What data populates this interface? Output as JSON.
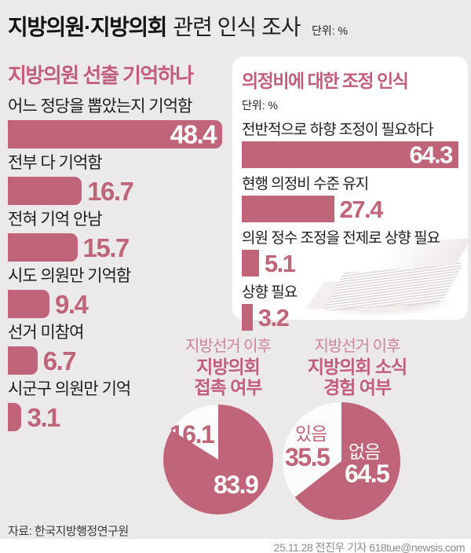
{
  "header": {
    "title_bold": "지방의원·지방의회",
    "title_rest": "관련 인식 조사",
    "unit": "단위: %"
  },
  "chart_data": [
    {
      "type": "bar",
      "orientation": "horizontal",
      "title": "지방의원 선출 기억하나",
      "unit": "%",
      "categories": [
        "어느 정당을 뽑았는지 기억함",
        "전부 다 기억함",
        "전혀 기억 안남",
        "시도 의원만 기억함",
        "선거 미참여",
        "시군구 의원만 기억"
      ],
      "values": [
        48.4,
        16.7,
        15.7,
        9.4,
        6.7,
        3.1
      ],
      "xlim": [
        0,
        50
      ],
      "grid": false
    },
    {
      "type": "bar",
      "orientation": "horizontal",
      "title": "의정비에 대한 조정 인식",
      "unit": "단위: %",
      "categories": [
        "전반적으로 하향 조정이 필요하다",
        "현행 의정비 수준 유지",
        "의원 정수 조정을 전제로 상향 필요",
        "상향 필요"
      ],
      "values": [
        64.3,
        27.4,
        5.1,
        3.2
      ],
      "xlim": [
        0,
        65
      ],
      "grid": false
    },
    {
      "type": "pie",
      "title_lines": [
        "지방선거 이후",
        "지방의회",
        "접촉 여부"
      ],
      "slices": [
        {
          "label": "",
          "value": 83.9,
          "color": "#bf6479"
        },
        {
          "label": "",
          "value": 16.1,
          "color": "#fdfcfc"
        }
      ]
    },
    {
      "type": "pie",
      "title_lines": [
        "지방선거 이후",
        "지방의회 소식",
        "경험 여부"
      ],
      "slices": [
        {
          "label": "없음",
          "value": 64.5,
          "color": "#bf6479"
        },
        {
          "label": "있음",
          "value": 35.5,
          "color": "#fdfcfc"
        }
      ]
    }
  ],
  "footer": {
    "source": "자료: 한국지방행정연구원",
    "credit": "25.11.28 전진우 기자 618tue@newsis.com"
  },
  "colors": {
    "accent": "#bf6479",
    "heading_pink": "#c25e7b",
    "pie_title_light": "#cd8498",
    "slice_white": "#fdfcfc",
    "background": "#ebe9e9",
    "card": "#ffffff"
  }
}
